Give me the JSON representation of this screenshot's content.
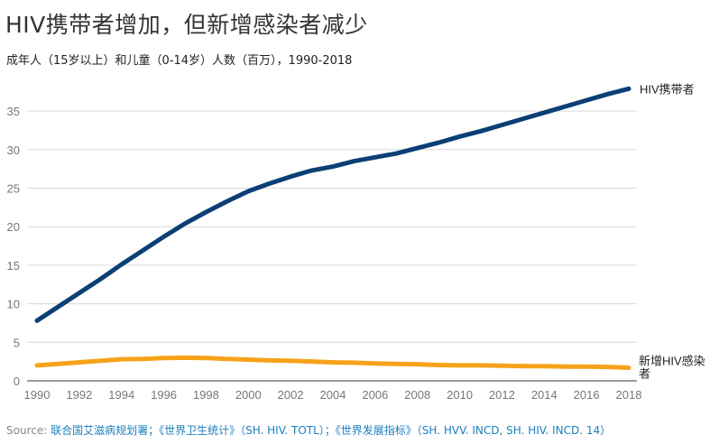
{
  "header": {
    "title": "HIV携带者增加，但新增感染者减少",
    "subtitle": "成年人（15岁以上）和儿童（0-14岁）人数（百万），1990-2018"
  },
  "footer": {
    "source_label": "Source:",
    "source_text": "联合国艾滋病规划署；《世界卫生统计》（SH. HIV. TOTL）；《世界发展指标》（SH. HVV. INCD, SH. HIV. INCD. 14）"
  },
  "chart_data": {
    "type": "line",
    "title": "HIV携带者增加，但新增感染者减少",
    "subtitle": "成年人（15岁以上）和儿童（0-14岁）人数（百万），1990-2018",
    "xlabel": "",
    "ylabel": "",
    "xlim": [
      1990,
      2018
    ],
    "ylim": [
      0,
      38
    ],
    "grid": true,
    "x_ticks": [
      "1990",
      "1992",
      "1994",
      "1996",
      "1998",
      "2000",
      "2002",
      "2004",
      "2006",
      "2008",
      "2010",
      "2012",
      "2014",
      "2016",
      "2018"
    ],
    "y_ticks": [
      "0",
      "5",
      "10",
      "15",
      "20",
      "25",
      "30",
      "35"
    ],
    "x": [
      1990,
      1991,
      1992,
      1993,
      1994,
      1995,
      1996,
      1997,
      1998,
      1999,
      2000,
      2001,
      2002,
      2003,
      2004,
      2005,
      2006,
      2007,
      2008,
      2009,
      2010,
      2011,
      2012,
      2013,
      2014,
      2015,
      2016,
      2017,
      2018
    ],
    "series": [
      {
        "name": "HIV携带者",
        "color": "#0b3f75",
        "values": [
          7.8,
          9.6,
          11.4,
          13.2,
          15.1,
          16.9,
          18.7,
          20.4,
          21.9,
          23.3,
          24.6,
          25.6,
          26.5,
          27.3,
          27.8,
          28.5,
          29.0,
          29.5,
          30.2,
          30.9,
          31.7,
          32.4,
          33.2,
          34.0,
          34.8,
          35.6,
          36.4,
          37.2,
          37.9
        ],
        "label": "HIV携带者"
      },
      {
        "name": "新增HIV感染者",
        "color": "#f7a21b",
        "values": [
          2.0,
          2.2,
          2.4,
          2.6,
          2.8,
          2.85,
          2.95,
          3.0,
          2.95,
          2.85,
          2.75,
          2.65,
          2.6,
          2.5,
          2.4,
          2.35,
          2.25,
          2.2,
          2.15,
          2.05,
          2.0,
          2.0,
          1.95,
          1.9,
          1.9,
          1.85,
          1.85,
          1.8,
          1.7
        ],
        "label": "新增HIV感染者"
      }
    ]
  }
}
